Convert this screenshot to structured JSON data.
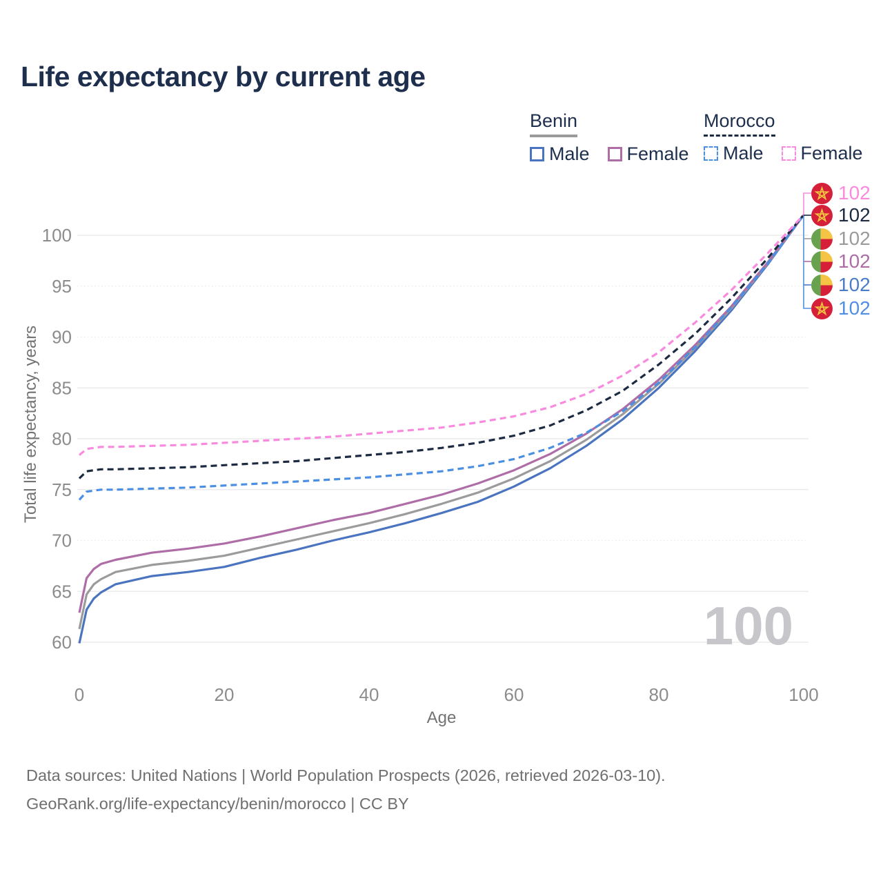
{
  "header": {
    "title": "Life expectancy by current age"
  },
  "legend": {
    "groups": [
      {
        "country": "Benin",
        "line_style": "solid",
        "line_color": "#9b9b9b",
        "items": [
          {
            "label": "Male",
            "color": "#4a74c0"
          },
          {
            "label": "Female",
            "color": "#ae6da7"
          }
        ]
      },
      {
        "country": "Morocco",
        "line_style": "dashed",
        "line_color": "#1c2b42",
        "items": [
          {
            "label": "Male",
            "color": "#4b8fe2"
          },
          {
            "label": "Female",
            "color": "#f98ade"
          }
        ]
      }
    ]
  },
  "chart_data": {
    "type": "line",
    "title": "Life expectancy by current age",
    "xlabel": "Age",
    "ylabel": "Total life expectancy, years",
    "xlim": [
      0,
      100
    ],
    "ylim": [
      59.5,
      103
    ],
    "x_ticks": [
      0,
      20,
      40,
      60,
      80,
      100
    ],
    "y_ticks": [
      60,
      65,
      70,
      75,
      80,
      85,
      90,
      95,
      100
    ],
    "grid": true,
    "dotted_gridlines": [
      70,
      90,
      95
    ],
    "legend_position": "top-right",
    "x": [
      0,
      1,
      2,
      3,
      5,
      10,
      15,
      20,
      25,
      30,
      35,
      40,
      45,
      50,
      55,
      60,
      65,
      70,
      75,
      80,
      85,
      90,
      95,
      100
    ],
    "series": [
      {
        "name": "Benin Male",
        "country": "Benin",
        "sex": "Male",
        "color": "#4a74c0",
        "dash": false,
        "values": [
          59.9,
          63.2,
          64.3,
          64.9,
          65.7,
          66.5,
          66.9,
          67.4,
          68.3,
          69.1,
          70.0,
          70.8,
          71.7,
          72.7,
          73.8,
          75.3,
          77.1,
          79.3,
          81.9,
          85.0,
          88.6,
          92.6,
          97.1,
          102
        ]
      },
      {
        "name": "Benin Both sexes",
        "country": "Benin",
        "sex": "Both",
        "color": "#9b9b9b",
        "dash": false,
        "values": [
          61.3,
          64.7,
          65.7,
          66.2,
          66.9,
          67.6,
          68.0,
          68.5,
          69.3,
          70.1,
          70.9,
          71.7,
          72.6,
          73.6,
          74.7,
          76.1,
          77.8,
          79.9,
          82.4,
          85.4,
          88.9,
          92.8,
          97.2,
          102
        ]
      },
      {
        "name": "Benin Female",
        "country": "Benin",
        "sex": "Female",
        "color": "#ae6da7",
        "dash": false,
        "values": [
          62.9,
          66.3,
          67.2,
          67.7,
          68.1,
          68.8,
          69.2,
          69.7,
          70.4,
          71.2,
          72.0,
          72.7,
          73.6,
          74.5,
          75.6,
          76.9,
          78.5,
          80.5,
          82.9,
          85.8,
          89.2,
          93.0,
          97.3,
          102
        ]
      },
      {
        "name": "Morocco Male",
        "country": "Morocco",
        "sex": "Male",
        "color": "#4b8fe2",
        "dash": true,
        "values": [
          74.0,
          74.8,
          74.9,
          75.0,
          75.0,
          75.1,
          75.2,
          75.4,
          75.6,
          75.8,
          76.0,
          76.2,
          76.5,
          76.8,
          77.3,
          78.0,
          79.1,
          80.6,
          82.7,
          85.5,
          89.0,
          92.9,
          97.2,
          102
        ]
      },
      {
        "name": "Morocco Both sexes",
        "country": "Morocco",
        "sex": "Both",
        "color": "#1c2b42",
        "dash": true,
        "values": [
          76.1,
          76.8,
          76.9,
          77.0,
          77.0,
          77.1,
          77.2,
          77.4,
          77.6,
          77.8,
          78.1,
          78.4,
          78.7,
          79.1,
          79.6,
          80.3,
          81.3,
          82.8,
          84.7,
          87.3,
          90.3,
          93.8,
          97.7,
          102
        ]
      },
      {
        "name": "Morocco Female",
        "country": "Morocco",
        "sex": "Female",
        "color": "#f98ade",
        "dash": true,
        "values": [
          78.4,
          79.0,
          79.1,
          79.2,
          79.2,
          79.3,
          79.4,
          79.6,
          79.8,
          80.0,
          80.2,
          80.5,
          80.8,
          81.1,
          81.6,
          82.2,
          83.1,
          84.4,
          86.2,
          88.5,
          91.4,
          94.6,
          98.2,
          102
        ]
      }
    ]
  },
  "end_labels": [
    {
      "flag": "morocco",
      "series": "Morocco Female",
      "value": "102",
      "color": "#f98ade"
    },
    {
      "flag": "morocco",
      "series": "Morocco Both sexes",
      "value": "102",
      "color": "#1c2b42"
    },
    {
      "flag": "benin",
      "series": "Benin Both sexes",
      "value": "102",
      "color": "#9b9b9b"
    },
    {
      "flag": "benin",
      "series": "Benin Female",
      "value": "102",
      "color": "#ae6da7"
    },
    {
      "flag": "benin",
      "series": "Benin Male",
      "value": "102",
      "color": "#4a7cc7"
    },
    {
      "flag": "morocco",
      "series": "Morocco Male",
      "value": "102",
      "color": "#4f8fe3"
    }
  ],
  "flag_colors": {
    "morocco_red": "#d62039",
    "star_gold": "#f2c63e",
    "benin_green": "#68a24f",
    "benin_yellow": "#f6c445",
    "benin_red": "#d62039"
  },
  "watermark": {
    "text": "100"
  },
  "footer": {
    "line1": "Data sources: United Nations | World Population Prospects (2026, retrieved 2026-03-10).",
    "line2": "GeoRank.org/life-expectancy/benin/morocco | CC BY"
  }
}
